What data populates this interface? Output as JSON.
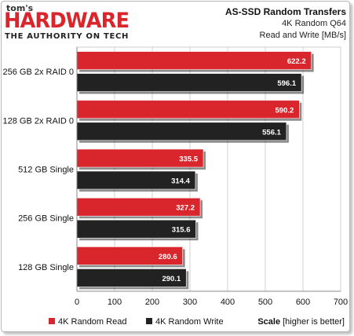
{
  "branding": {
    "small": "tom's",
    "big": "HARDWARE",
    "tagline": "THE AUTHORITY ON TECH"
  },
  "header": {
    "title": "AS-SSD Random Transfers",
    "subtitle": "4K Random Q64",
    "subtitle2": "Read and Write [MB/s]"
  },
  "footer": {
    "scale_bold": "Scale",
    "scale_rest": " [higher is better]"
  },
  "chart_data": {
    "type": "bar",
    "orientation": "horizontal",
    "categories": [
      "256 GB 2x RAID 0",
      "128 GB 2x RAID 0",
      "512 GB Single",
      "256 GB Single",
      "128 GB Single"
    ],
    "series": [
      {
        "name": "4K Random Read",
        "color": "#d9262c",
        "values": [
          622.2,
          590.2,
          335.5,
          327.2,
          280.6
        ]
      },
      {
        "name": "4K Random Write",
        "color": "#222222",
        "values": [
          596.1,
          556.1,
          314.4,
          315.6,
          290.1
        ]
      }
    ],
    "value_labels": [
      [
        "622.2",
        "590.2",
        "335.5",
        "327.2",
        "280.6"
      ],
      [
        "596.1",
        "556.1",
        "314.4",
        "315.6",
        "290.1"
      ]
    ],
    "xlim": [
      0,
      700
    ],
    "xticks": [
      "0",
      "100",
      "200",
      "300",
      "400",
      "500",
      "600",
      "700"
    ],
    "grid": true,
    "legend_position": "bottom-left"
  }
}
